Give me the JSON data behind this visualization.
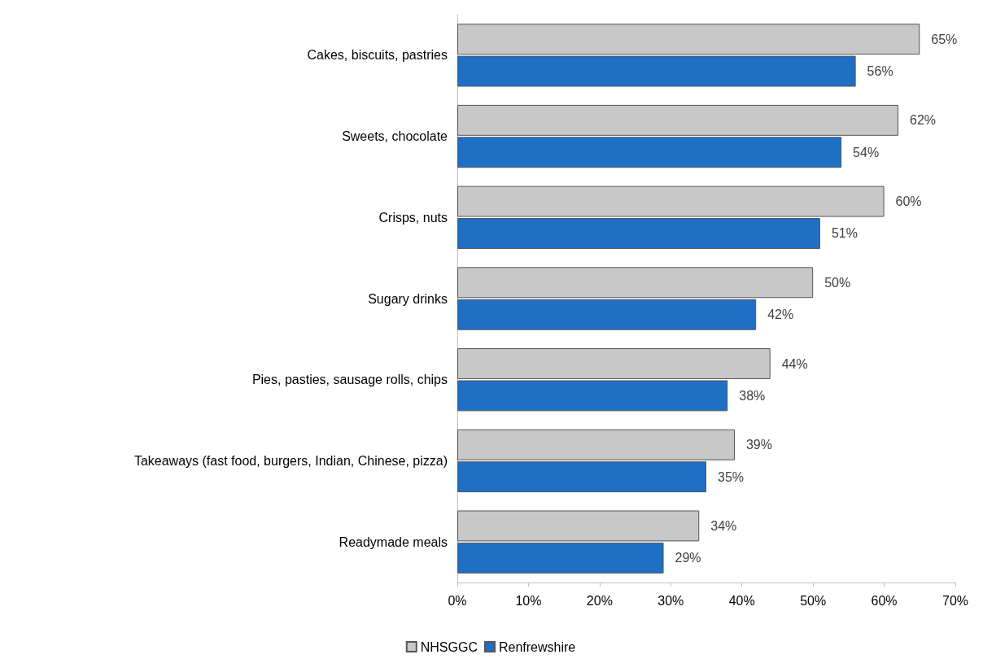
{
  "chart_data": {
    "type": "bar",
    "orientation": "horizontal",
    "categories": [
      "Cakes, biscuits, pastries",
      "Sweets, chocolate",
      "Crisps, nuts",
      "Sugary drinks",
      "Pies, pasties, sausage rolls, chips",
      "Takeaways (fast food, burgers, Indian, Chinese, pizza)",
      "Readymade meals"
    ],
    "series": [
      {
        "name": "NHSGGC",
        "color": "#c8c8c8",
        "values": [
          65,
          62,
          60,
          50,
          44,
          39,
          34
        ],
        "value_labels": [
          "65%",
          "62%",
          "60%",
          "50%",
          "44%",
          "39%",
          "34%"
        ]
      },
      {
        "name": "Renfrewshire",
        "color": "#1f6fc4",
        "values": [
          56,
          54,
          51,
          42,
          38,
          35,
          29
        ],
        "value_labels": [
          "56%",
          "54%",
          "51%",
          "42%",
          "38%",
          "35%",
          "29%"
        ]
      }
    ],
    "xlim": [
      0,
      70
    ],
    "xticks": [
      {
        "value": 0,
        "label": "0%"
      },
      {
        "value": 10,
        "label": "10%"
      },
      {
        "value": 20,
        "label": "20%"
      },
      {
        "value": 30,
        "label": "30%"
      },
      {
        "value": 40,
        "label": "40%"
      },
      {
        "value": 50,
        "label": "50%"
      },
      {
        "value": 60,
        "label": "60%"
      },
      {
        "value": 70,
        "label": "70%"
      }
    ],
    "grid": false,
    "legend": "bottom"
  }
}
